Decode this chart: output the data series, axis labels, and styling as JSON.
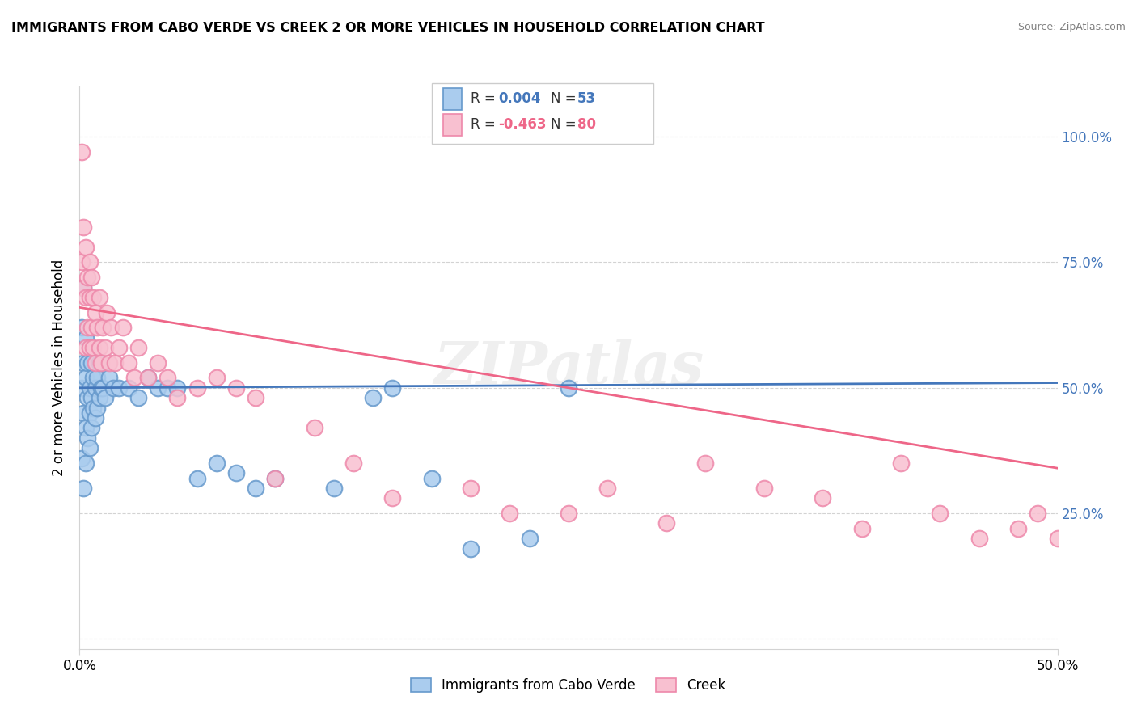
{
  "title": "IMMIGRANTS FROM CABO VERDE VS CREEK 2 OR MORE VEHICLES IN HOUSEHOLD CORRELATION CHART",
  "source": "Source: ZipAtlas.com",
  "ylabel_label": "2 or more Vehicles in Household",
  "xlim": [
    0.0,
    0.5
  ],
  "ylim": [
    -0.02,
    1.1
  ],
  "yticks": [
    0.0,
    0.25,
    0.5,
    0.75,
    1.0
  ],
  "ytick_labels": [
    "",
    "25.0%",
    "50.0%",
    "75.0%",
    "100.0%"
  ],
  "color_blue": "#aaccee",
  "color_pink": "#f8c0d0",
  "edge_blue": "#6699cc",
  "edge_pink": "#ee88aa",
  "line_blue": "#4477bb",
  "line_pink": "#ee6688",
  "blue_intercept": 0.5,
  "blue_slope": 0.02,
  "pink_intercept": 0.66,
  "pink_slope": -0.64,
  "blue_points_x": [
    0.001,
    0.001,
    0.001,
    0.002,
    0.002,
    0.002,
    0.002,
    0.003,
    0.003,
    0.003,
    0.003,
    0.004,
    0.004,
    0.004,
    0.005,
    0.005,
    0.005,
    0.005,
    0.006,
    0.006,
    0.006,
    0.007,
    0.007,
    0.008,
    0.008,
    0.009,
    0.009,
    0.01,
    0.01,
    0.011,
    0.012,
    0.013,
    0.015,
    0.017,
    0.02,
    0.025,
    0.03,
    0.035,
    0.04,
    0.045,
    0.05,
    0.06,
    0.07,
    0.08,
    0.09,
    0.1,
    0.13,
    0.15,
    0.16,
    0.18,
    0.2,
    0.23,
    0.25
  ],
  "blue_points_y": [
    0.5,
    0.62,
    0.36,
    0.7,
    0.55,
    0.45,
    0.3,
    0.6,
    0.52,
    0.42,
    0.35,
    0.55,
    0.48,
    0.4,
    0.58,
    0.5,
    0.45,
    0.38,
    0.55,
    0.48,
    0.42,
    0.52,
    0.46,
    0.5,
    0.44,
    0.52,
    0.46,
    0.55,
    0.48,
    0.5,
    0.5,
    0.48,
    0.52,
    0.5,
    0.5,
    0.5,
    0.48,
    0.52,
    0.5,
    0.5,
    0.5,
    0.32,
    0.35,
    0.33,
    0.3,
    0.32,
    0.3,
    0.48,
    0.5,
    0.32,
    0.18,
    0.2,
    0.5
  ],
  "pink_points_x": [
    0.001,
    0.001,
    0.002,
    0.002,
    0.003,
    0.003,
    0.003,
    0.004,
    0.004,
    0.005,
    0.005,
    0.005,
    0.006,
    0.006,
    0.007,
    0.007,
    0.008,
    0.008,
    0.009,
    0.01,
    0.01,
    0.011,
    0.012,
    0.013,
    0.014,
    0.015,
    0.016,
    0.018,
    0.02,
    0.022,
    0.025,
    0.028,
    0.03,
    0.035,
    0.04,
    0.045,
    0.05,
    0.06,
    0.07,
    0.08,
    0.09,
    0.1,
    0.12,
    0.14,
    0.16,
    0.2,
    0.22,
    0.25,
    0.27,
    0.3,
    0.32,
    0.35,
    0.38,
    0.4,
    0.42,
    0.44,
    0.46,
    0.48,
    0.49,
    0.5
  ],
  "pink_points_y": [
    0.97,
    0.75,
    0.82,
    0.7,
    0.78,
    0.68,
    0.58,
    0.72,
    0.62,
    0.75,
    0.68,
    0.58,
    0.72,
    0.62,
    0.68,
    0.58,
    0.65,
    0.55,
    0.62,
    0.68,
    0.58,
    0.55,
    0.62,
    0.58,
    0.65,
    0.55,
    0.62,
    0.55,
    0.58,
    0.62,
    0.55,
    0.52,
    0.58,
    0.52,
    0.55,
    0.52,
    0.48,
    0.5,
    0.52,
    0.5,
    0.48,
    0.32,
    0.42,
    0.35,
    0.28,
    0.3,
    0.25,
    0.25,
    0.3,
    0.23,
    0.35,
    0.3,
    0.28,
    0.22,
    0.35,
    0.25,
    0.2,
    0.22,
    0.25,
    0.2
  ]
}
